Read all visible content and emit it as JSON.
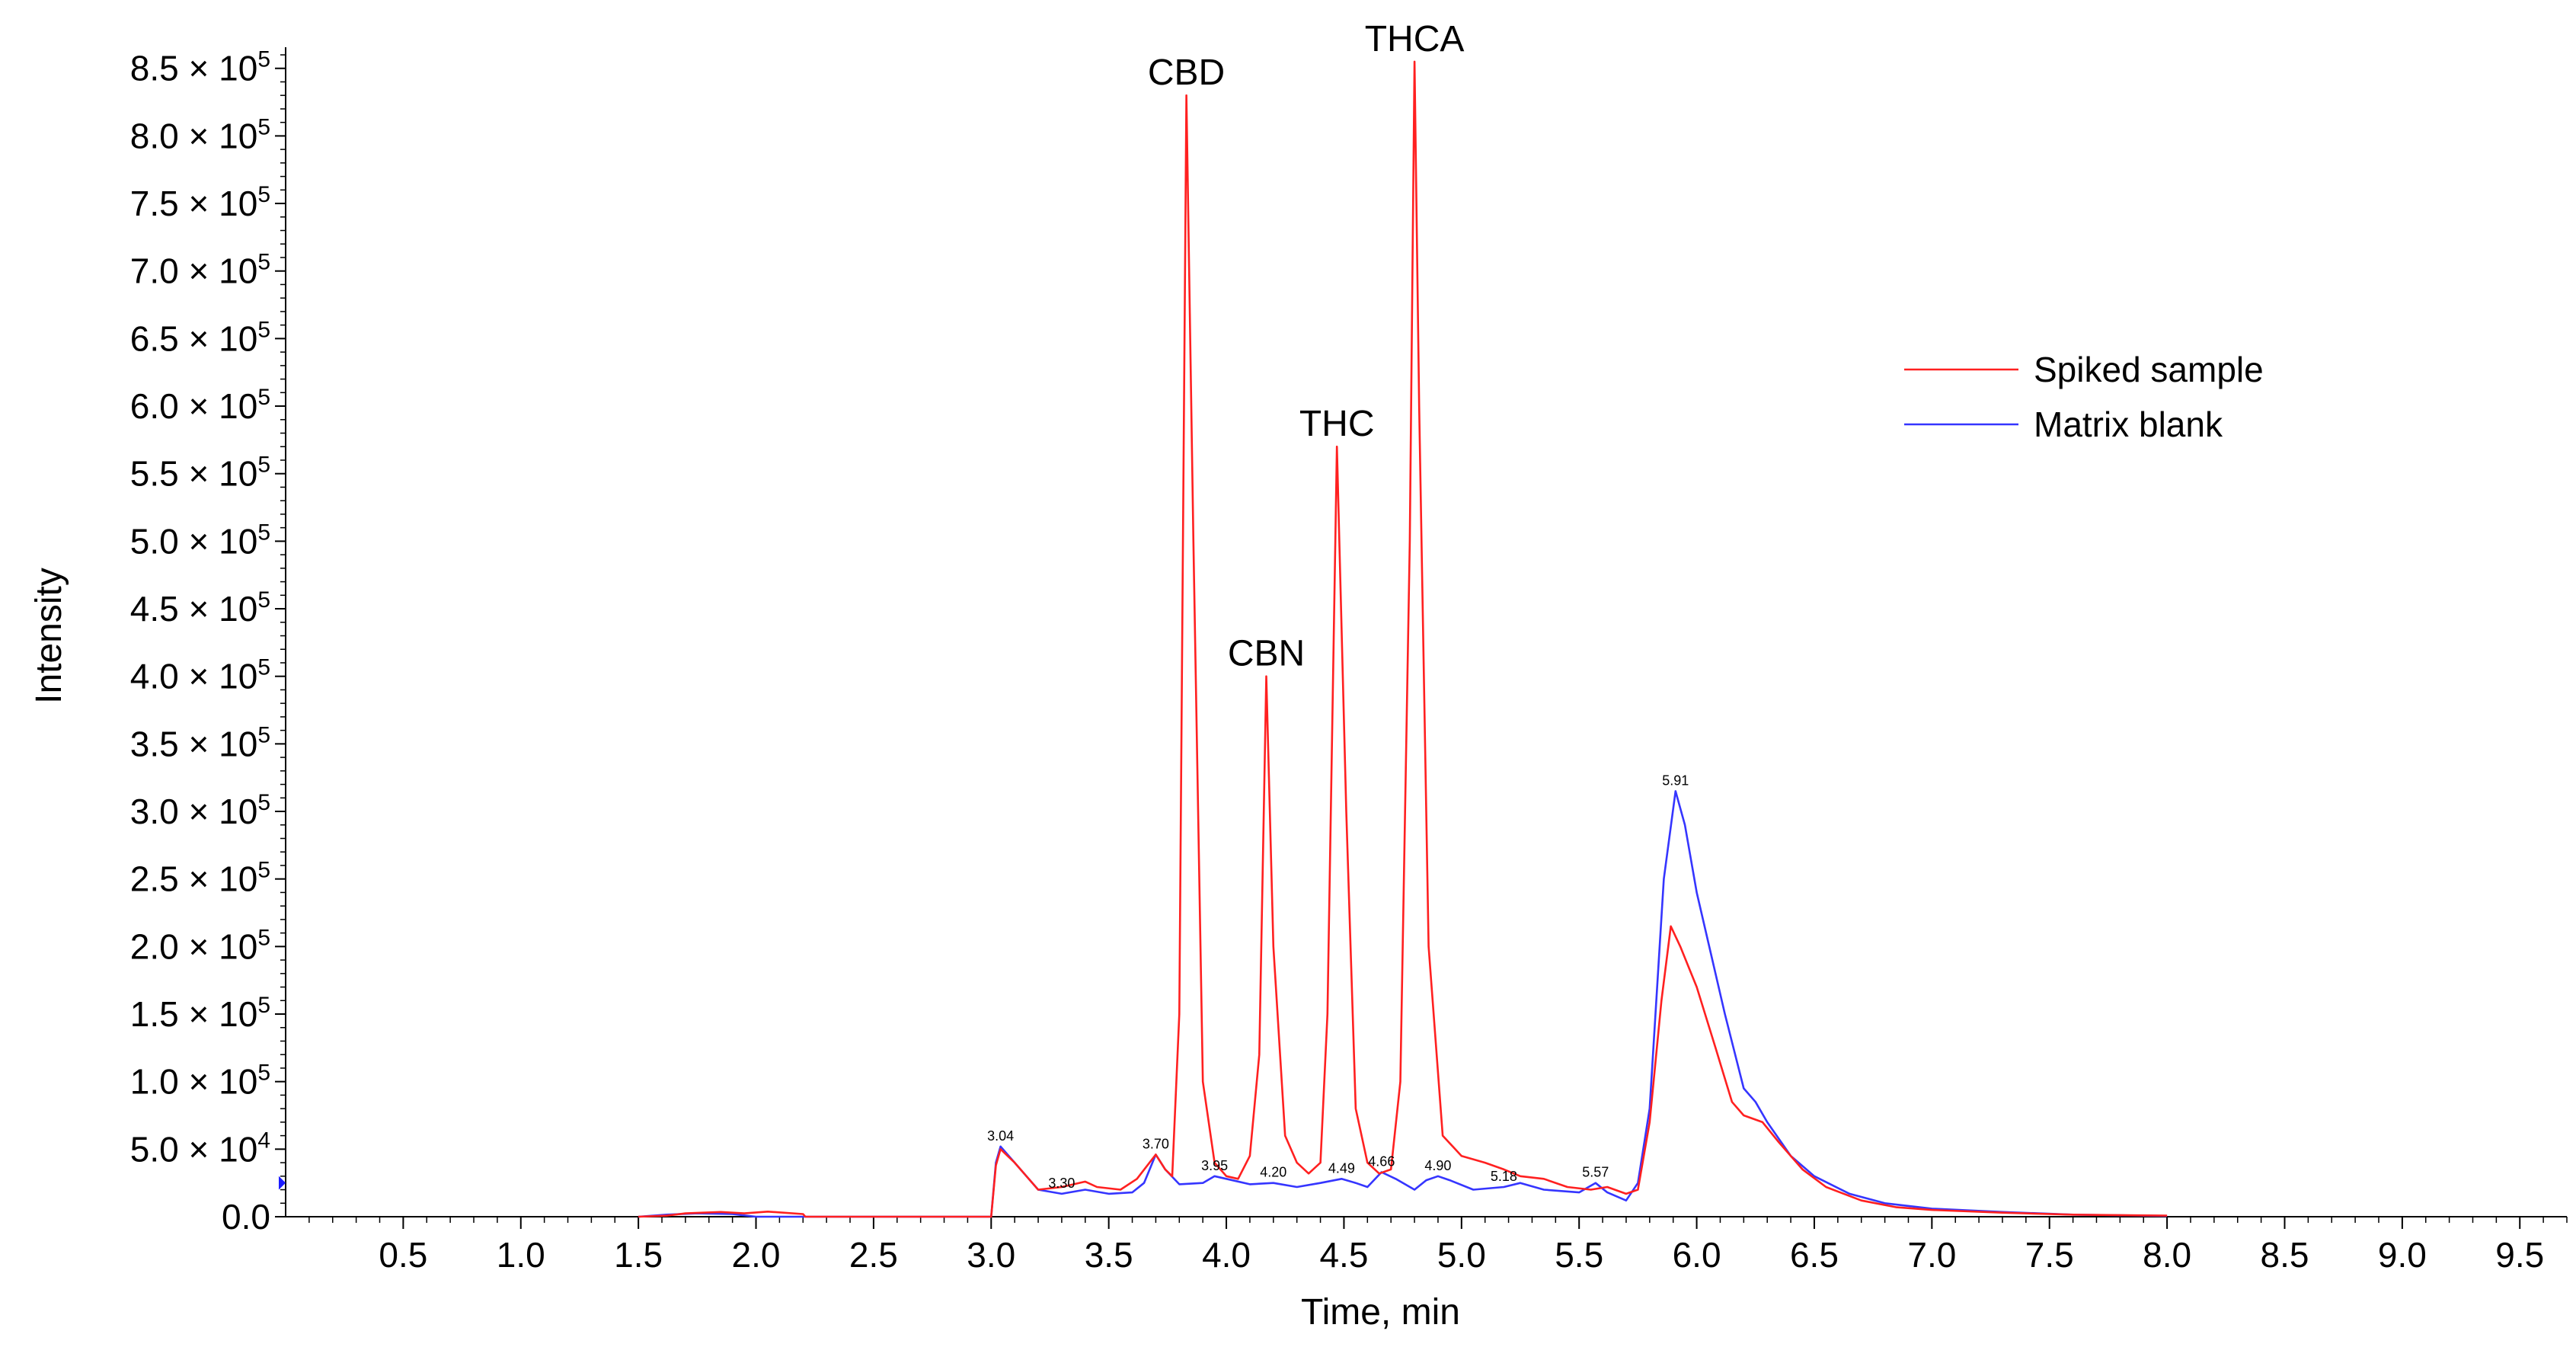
{
  "chart_data": {
    "type": "line",
    "title": "",
    "xlabel": "Time, min",
    "ylabel": "Intensity",
    "xlim": [
      0,
      9.7
    ],
    "ylim": [
      0,
      860000
    ],
    "x_ticks": [
      "0.5",
      "1.0",
      "1.5",
      "2.0",
      "2.5",
      "3.0",
      "3.5",
      "4.0",
      "4.5",
      "5.0",
      "5.5",
      "6.0",
      "6.5",
      "7.0",
      "7.5",
      "8.0",
      "8.5",
      "9.0",
      "9.5"
    ],
    "y_ticks": [
      {
        "mantissa": "0.0",
        "exp": ""
      },
      {
        "mantissa": "5.0",
        "exp": "4"
      },
      {
        "mantissa": "1.0",
        "exp": "5"
      },
      {
        "mantissa": "1.5",
        "exp": "5"
      },
      {
        "mantissa": "2.0",
        "exp": "5"
      },
      {
        "mantissa": "2.5",
        "exp": "5"
      },
      {
        "mantissa": "3.0",
        "exp": "5"
      },
      {
        "mantissa": "3.5",
        "exp": "5"
      },
      {
        "mantissa": "4.0",
        "exp": "5"
      },
      {
        "mantissa": "4.5",
        "exp": "5"
      },
      {
        "mantissa": "5.0",
        "exp": "5"
      },
      {
        "mantissa": "5.5",
        "exp": "5"
      },
      {
        "mantissa": "6.0",
        "exp": "5"
      },
      {
        "mantissa": "6.5",
        "exp": "5"
      },
      {
        "mantissa": "7.0",
        "exp": "5"
      },
      {
        "mantissa": "7.5",
        "exp": "5"
      },
      {
        "mantissa": "8.0",
        "exp": "5"
      },
      {
        "mantissa": "8.5",
        "exp": "5"
      }
    ],
    "grid": false,
    "legend_position": "right",
    "series": [
      {
        "name": "Spiked sample",
        "color": "#ff2020",
        "points": [
          [
            1.5,
            0
          ],
          [
            1.62,
            800
          ],
          [
            1.7,
            2500
          ],
          [
            1.85,
            3500
          ],
          [
            1.95,
            2500
          ],
          [
            2.05,
            3800
          ],
          [
            2.2,
            2000
          ],
          [
            2.21,
            0
          ],
          [
            3.0,
            0
          ],
          [
            3.02,
            38000
          ],
          [
            3.04,
            50000
          ],
          [
            3.1,
            40000
          ],
          [
            3.15,
            30000
          ],
          [
            3.2,
            20000
          ],
          [
            3.3,
            22000
          ],
          [
            3.4,
            26000
          ],
          [
            3.45,
            22000
          ],
          [
            3.55,
            20000
          ],
          [
            3.62,
            28000
          ],
          [
            3.7,
            46000
          ],
          [
            3.74,
            35000
          ],
          [
            3.77,
            30000
          ],
          [
            3.8,
            150000
          ],
          [
            3.83,
            830000
          ],
          [
            3.86,
            500000
          ],
          [
            3.9,
            100000
          ],
          [
            3.95,
            40000
          ],
          [
            4.0,
            30000
          ],
          [
            4.05,
            28000
          ],
          [
            4.1,
            45000
          ],
          [
            4.14,
            120000
          ],
          [
            4.17,
            400000
          ],
          [
            4.2,
            200000
          ],
          [
            4.25,
            60000
          ],
          [
            4.3,
            40000
          ],
          [
            4.35,
            32000
          ],
          [
            4.4,
            40000
          ],
          [
            4.43,
            150000
          ],
          [
            4.47,
            570000
          ],
          [
            4.51,
            300000
          ],
          [
            4.55,
            80000
          ],
          [
            4.6,
            40000
          ],
          [
            4.65,
            32000
          ],
          [
            4.7,
            35000
          ],
          [
            4.74,
            100000
          ],
          [
            4.78,
            500000
          ],
          [
            4.8,
            855000
          ],
          [
            4.82,
            600000
          ],
          [
            4.86,
            200000
          ],
          [
            4.92,
            60000
          ],
          [
            5.0,
            45000
          ],
          [
            5.1,
            40000
          ],
          [
            5.18,
            35000
          ],
          [
            5.25,
            30000
          ],
          [
            5.35,
            28000
          ],
          [
            5.45,
            22000
          ],
          [
            5.55,
            20000
          ],
          [
            5.62,
            22000
          ],
          [
            5.7,
            17000
          ],
          [
            5.75,
            20000
          ],
          [
            5.8,
            70000
          ],
          [
            5.85,
            160000
          ],
          [
            5.89,
            215000
          ],
          [
            5.93,
            200000
          ],
          [
            6.0,
            170000
          ],
          [
            6.08,
            125000
          ],
          [
            6.15,
            85000
          ],
          [
            6.2,
            75000
          ],
          [
            6.28,
            70000
          ],
          [
            6.35,
            55000
          ],
          [
            6.45,
            35000
          ],
          [
            6.55,
            22000
          ],
          [
            6.7,
            12000
          ],
          [
            6.85,
            7000
          ],
          [
            7.0,
            5000
          ],
          [
            7.3,
            3000
          ],
          [
            7.6,
            1500
          ],
          [
            8.0,
            800
          ]
        ]
      },
      {
        "name": "Matrix blank",
        "color": "#3535ff",
        "points": [
          [
            1.5,
            0
          ],
          [
            1.62,
            1500
          ],
          [
            1.75,
            2500
          ],
          [
            1.9,
            2000
          ],
          [
            2.0,
            0
          ],
          [
            3.0,
            0
          ],
          [
            3.02,
            40000
          ],
          [
            3.04,
            52000
          ],
          [
            3.1,
            40000
          ],
          [
            3.2,
            20000
          ],
          [
            3.3,
            17000
          ],
          [
            3.4,
            20000
          ],
          [
            3.5,
            17000
          ],
          [
            3.6,
            18000
          ],
          [
            3.65,
            25000
          ],
          [
            3.7,
            46000
          ],
          [
            3.74,
            35000
          ],
          [
            3.8,
            24000
          ],
          [
            3.9,
            25000
          ],
          [
            3.95,
            30000
          ],
          [
            4.0,
            28000
          ],
          [
            4.1,
            24000
          ],
          [
            4.2,
            25000
          ],
          [
            4.3,
            22000
          ],
          [
            4.4,
            25000
          ],
          [
            4.49,
            28000
          ],
          [
            4.55,
            25000
          ],
          [
            4.6,
            22000
          ],
          [
            4.66,
            33000
          ],
          [
            4.72,
            28000
          ],
          [
            4.8,
            20000
          ],
          [
            4.85,
            27000
          ],
          [
            4.9,
            30000
          ],
          [
            4.95,
            27000
          ],
          [
            5.05,
            20000
          ],
          [
            5.18,
            22000
          ],
          [
            5.25,
            25000
          ],
          [
            5.35,
            20000
          ],
          [
            5.5,
            18000
          ],
          [
            5.57,
            25000
          ],
          [
            5.62,
            18000
          ],
          [
            5.7,
            12000
          ],
          [
            5.75,
            25000
          ],
          [
            5.8,
            80000
          ],
          [
            5.86,
            250000
          ],
          [
            5.91,
            315000
          ],
          [
            5.95,
            290000
          ],
          [
            6.0,
            240000
          ],
          [
            6.06,
            195000
          ],
          [
            6.12,
            150000
          ],
          [
            6.2,
            95000
          ],
          [
            6.25,
            85000
          ],
          [
            6.3,
            70000
          ],
          [
            6.4,
            45000
          ],
          [
            6.5,
            30000
          ],
          [
            6.65,
            17000
          ],
          [
            6.8,
            10000
          ],
          [
            7.0,
            6000
          ],
          [
            7.3,
            3500
          ],
          [
            7.6,
            1500
          ],
          [
            8.0,
            600
          ]
        ]
      }
    ],
    "peak_labels": [
      {
        "text": "CBD",
        "x": 3.83,
        "y": 830000
      },
      {
        "text": "CBN",
        "x": 4.17,
        "y": 400000
      },
      {
        "text": "THC",
        "x": 4.47,
        "y": 570000
      },
      {
        "text": "THCA",
        "x": 4.8,
        "y": 855000
      }
    ],
    "rt_labels": [
      {
        "text": "3.04",
        "x": 3.04,
        "y": 52000
      },
      {
        "text": "3.30",
        "x": 3.3,
        "y": 17000
      },
      {
        "text": "3.70",
        "x": 3.7,
        "y": 46000
      },
      {
        "text": "3.95",
        "x": 3.95,
        "y": 30000
      },
      {
        "text": "4.20",
        "x": 4.2,
        "y": 25000
      },
      {
        "text": "4.49",
        "x": 4.49,
        "y": 28000
      },
      {
        "text": "4.66",
        "x": 4.66,
        "y": 33000
      },
      {
        "text": "4.90",
        "x": 4.9,
        "y": 30000
      },
      {
        "text": "5.18",
        "x": 5.18,
        "y": 22000
      },
      {
        "text": "5.57",
        "x": 5.57,
        "y": 25000
      },
      {
        "text": "5.91",
        "x": 5.91,
        "y": 315000
      }
    ]
  }
}
